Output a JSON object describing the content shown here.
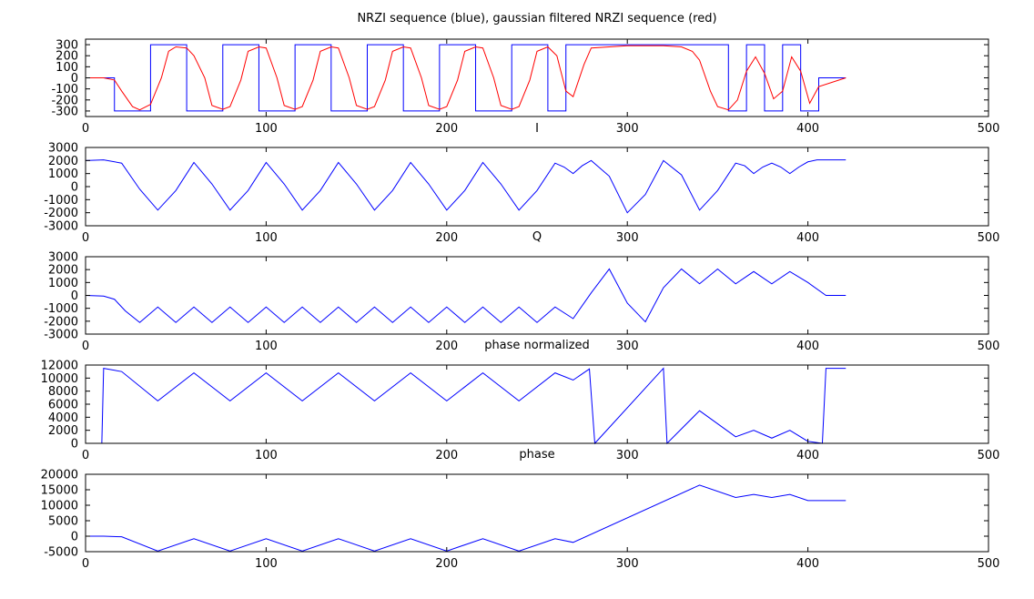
{
  "colors": {
    "blue": "#0000ff",
    "red": "#ff0000",
    "frame": "#000000",
    "background": "#ffffff"
  },
  "chart_data": [
    {
      "type": "line",
      "title": "NRZI sequence (blue), gaussian filtered NRZI sequence (red)",
      "xlabel": "",
      "ylabel": "",
      "xlim": [
        0,
        500
      ],
      "ylim": [
        -350,
        350
      ],
      "xticks": [
        0,
        100,
        200,
        300,
        400,
        500
      ],
      "yticks": [
        -300,
        -200,
        -100,
        0,
        100,
        200,
        300
      ],
      "grid": false,
      "series": [
        {
          "color": "#0000ff",
          "step": true,
          "x": [
            0,
            16,
            36,
            56,
            76,
            96,
            116,
            136,
            156,
            176,
            196,
            216,
            236,
            256,
            266,
            356,
            366,
            376,
            386,
            396,
            406,
            421
          ],
          "y": [
            0,
            -300,
            300,
            -300,
            300,
            -300,
            300,
            -300,
            300,
            -300,
            300,
            -300,
            300,
            -300,
            300,
            -300,
            300,
            -300,
            300,
            -300,
            0,
            0
          ]
        },
        {
          "color": "#ff0000",
          "x": [
            0,
            10,
            16,
            20,
            26,
            30,
            36,
            42,
            46,
            50,
            56,
            60,
            66,
            70,
            76,
            80,
            86,
            90,
            96,
            100,
            106,
            110,
            116,
            120,
            126,
            130,
            136,
            140,
            146,
            150,
            156,
            160,
            166,
            170,
            176,
            180,
            186,
            190,
            196,
            200,
            206,
            210,
            216,
            220,
            226,
            230,
            236,
            240,
            246,
            250,
            256,
            261,
            266,
            270,
            276,
            280,
            300,
            320,
            330,
            336,
            340,
            346,
            350,
            356,
            361,
            366,
            371,
            376,
            381,
            386,
            391,
            396,
            401,
            406,
            421
          ],
          "y": [
            0,
            0,
            -20,
            -120,
            -260,
            -290,
            -240,
            0,
            240,
            280,
            270,
            200,
            0,
            -250,
            -285,
            -260,
            -20,
            240,
            280,
            270,
            0,
            -250,
            -285,
            -260,
            -20,
            240,
            280,
            270,
            0,
            -250,
            -285,
            -260,
            -20,
            240,
            280,
            270,
            0,
            -250,
            -285,
            -260,
            -20,
            240,
            280,
            270,
            0,
            -250,
            -285,
            -260,
            -20,
            240,
            280,
            200,
            -120,
            -170,
            120,
            270,
            290,
            290,
            280,
            240,
            160,
            -120,
            -260,
            -290,
            -200,
            60,
            190,
            40,
            -190,
            -120,
            190,
            60,
            -230,
            -80,
            0
          ]
        }
      ]
    },
    {
      "type": "line",
      "title": "I",
      "xlabel": "",
      "ylabel": "",
      "xlim": [
        0,
        500
      ],
      "ylim": [
        -3000,
        3000
      ],
      "xticks": [
        0,
        100,
        200,
        300,
        400,
        500
      ],
      "yticks": [
        -3000,
        -2000,
        -1000,
        0,
        1000,
        2000,
        3000
      ],
      "grid": false,
      "series": [
        {
          "color": "#0000ff",
          "x": [
            0,
            10,
            20,
            30,
            40,
            50,
            60,
            70,
            80,
            90,
            100,
            110,
            120,
            130,
            140,
            150,
            160,
            170,
            180,
            190,
            200,
            210,
            220,
            230,
            240,
            250,
            260,
            265,
            270,
            275,
            280,
            290,
            300,
            310,
            320,
            330,
            340,
            350,
            360,
            365,
            370,
            375,
            380,
            385,
            390,
            395,
            400,
            405,
            410,
            421
          ],
          "y": [
            2000,
            2050,
            1800,
            -200,
            -1800,
            -300,
            1850,
            200,
            -1800,
            -300,
            1850,
            200,
            -1800,
            -300,
            1850,
            200,
            -1800,
            -300,
            1850,
            200,
            -1800,
            -300,
            1850,
            200,
            -1800,
            -300,
            1800,
            1500,
            1000,
            1600,
            2000,
            800,
            -2000,
            -600,
            2000,
            900,
            -1800,
            -300,
            1800,
            1600,
            1000,
            1500,
            1800,
            1500,
            1000,
            1500,
            1900,
            2050,
            2050,
            2050
          ]
        }
      ]
    },
    {
      "type": "line",
      "title": "Q",
      "xlabel": "",
      "ylabel": "",
      "xlim": [
        0,
        500
      ],
      "ylim": [
        -3000,
        3000
      ],
      "xticks": [
        0,
        100,
        200,
        300,
        400,
        500
      ],
      "yticks": [
        -3000,
        -2000,
        -1000,
        0,
        1000,
        2000,
        3000
      ],
      "grid": false,
      "series": [
        {
          "color": "#0000ff",
          "x": [
            0,
            10,
            16,
            22,
            30,
            40,
            50,
            60,
            70,
            80,
            90,
            100,
            110,
            120,
            130,
            140,
            150,
            160,
            170,
            180,
            190,
            200,
            210,
            220,
            230,
            240,
            250,
            260,
            270,
            280,
            290,
            300,
            310,
            320,
            330,
            340,
            350,
            360,
            370,
            380,
            390,
            400,
            410,
            421
          ],
          "y": [
            0,
            -50,
            -300,
            -1200,
            -2100,
            -900,
            -2100,
            -900,
            -2100,
            -900,
            -2100,
            -900,
            -2100,
            -900,
            -2100,
            -900,
            -2100,
            -900,
            -2100,
            -900,
            -2100,
            -900,
            -2100,
            -900,
            -2100,
            -900,
            -2100,
            -900,
            -1800,
            200,
            2050,
            -600,
            -2050,
            600,
            2050,
            900,
            2050,
            900,
            1850,
            900,
            1850,
            1000,
            0,
            0
          ]
        }
      ]
    },
    {
      "type": "line",
      "title": "phase normalized",
      "xlabel": "",
      "ylabel": "",
      "xlim": [
        0,
        500
      ],
      "ylim": [
        0,
        12000
      ],
      "xticks": [
        0,
        100,
        200,
        300,
        400,
        500
      ],
      "yticks": [
        0,
        2000,
        4000,
        6000,
        8000,
        10000,
        12000
      ],
      "grid": false,
      "series": [
        {
          "color": "#0000ff",
          "x": [
            0,
            9,
            10,
            20,
            40,
            60,
            80,
            100,
            120,
            140,
            160,
            180,
            200,
            220,
            240,
            260,
            270,
            279,
            282,
            320,
            322,
            340,
            360,
            370,
            380,
            390,
            400,
            408,
            410,
            421
          ],
          "y": [
            0,
            0,
            11500,
            11000,
            6500,
            10800,
            6500,
            10800,
            6500,
            10800,
            6500,
            10800,
            6500,
            10800,
            6500,
            10800,
            9700,
            11400,
            0,
            11500,
            0,
            5000,
            1000,
            2000,
            800,
            2000,
            300,
            0,
            11500,
            11500
          ]
        }
      ]
    },
    {
      "type": "line",
      "title": "phase",
      "xlabel": "",
      "ylabel": "",
      "xlim": [
        0,
        500
      ],
      "ylim": [
        -5000,
        20000
      ],
      "xticks": [
        0,
        100,
        200,
        300,
        400,
        500
      ],
      "yticks": [
        -5000,
        0,
        5000,
        10000,
        15000,
        20000
      ],
      "grid": false,
      "series": [
        {
          "color": "#0000ff",
          "x": [
            0,
            10,
            20,
            40,
            60,
            80,
            100,
            120,
            140,
            160,
            180,
            200,
            220,
            240,
            260,
            270,
            340,
            360,
            370,
            380,
            390,
            400,
            421
          ],
          "y": [
            0,
            0,
            -200,
            -4800,
            -800,
            -4800,
            -800,
            -4800,
            -800,
            -4800,
            -800,
            -4800,
            -800,
            -4800,
            -800,
            -2000,
            16500,
            12500,
            13500,
            12500,
            13500,
            11500,
            11500
          ]
        }
      ]
    }
  ]
}
